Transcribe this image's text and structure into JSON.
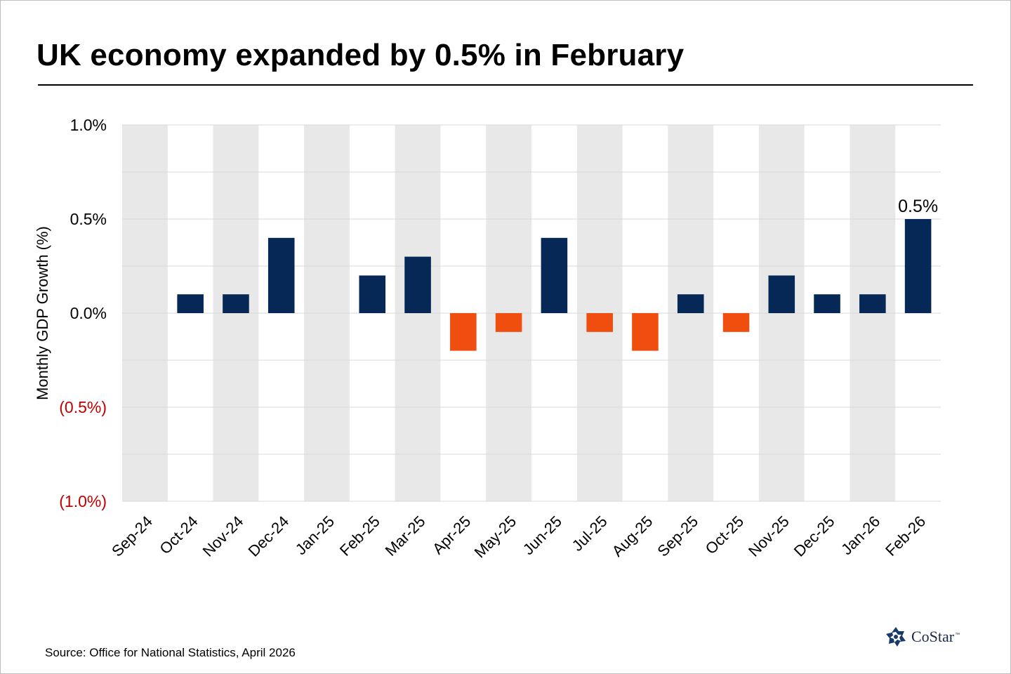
{
  "title": "UK economy expanded by 0.5% in February",
  "source": "Source: Office for National Statistics, April 2026",
  "logo": {
    "text": "CoStar",
    "trademark": "™",
    "icon": "costar-star-icon"
  },
  "colors": {
    "positive_bar": "#052857",
    "negative_bar": "#f04e0f",
    "band": "#e8e8e8",
    "grid": "#d9d9d9",
    "negative_tick": "#c00000",
    "positive_tick": "#000000"
  },
  "chart_data": {
    "type": "bar",
    "title": "UK economy expanded by 0.5% in February",
    "ylabel": "Monthly GDP Growth (%)",
    "xlabel": "",
    "ylim": [
      -1.0,
      1.0
    ],
    "yticks": [
      1.0,
      0.5,
      0.0,
      -0.5,
      -1.0
    ],
    "ytick_labels": [
      "1.0%",
      "0.5%",
      "0.0%",
      "(0.5%)",
      "(1.0%)"
    ],
    "grid": true,
    "alternating_bands": true,
    "categories": [
      "Sep-24",
      "Oct-24",
      "Nov-24",
      "Dec-24",
      "Jan-25",
      "Feb-25",
      "Mar-25",
      "Apr-25",
      "May-25",
      "Jun-25",
      "Jul-25",
      "Aug-25",
      "Sep-25",
      "Oct-25",
      "Nov-25",
      "Dec-25",
      "Jan-26",
      "Feb-26"
    ],
    "values": [
      0.0,
      0.1,
      0.1,
      0.4,
      0.0,
      0.2,
      0.3,
      -0.2,
      -0.1,
      0.4,
      -0.1,
      -0.2,
      0.1,
      -0.1,
      0.2,
      0.1,
      0.1,
      0.5
    ],
    "annotations": [
      {
        "category": "Feb-26",
        "text": "0.5%"
      }
    ]
  }
}
